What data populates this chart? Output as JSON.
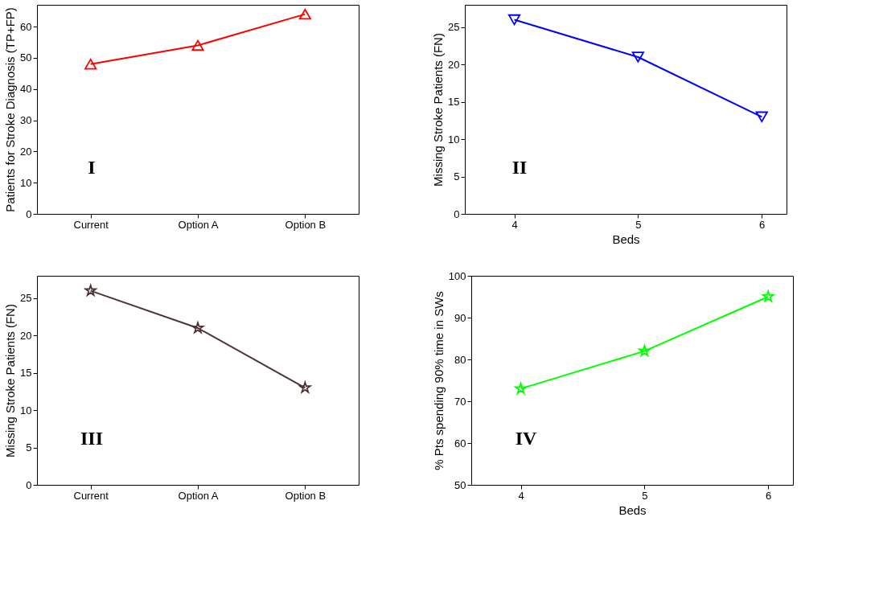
{
  "chart_data": [
    {
      "type": "line",
      "categories": [
        "Current",
        "Option A",
        "Option B"
      ],
      "ylabel": "Patients for Stroke Diagnosis (TP+FP)",
      "ylim": [
        0,
        67
      ],
      "yticks": [
        0,
        10,
        20,
        30,
        40,
        50,
        60
      ],
      "marker": "triangle",
      "annotations": [
        "I"
      ],
      "grid": false,
      "series": [
        {
          "color": "#ff0000",
          "values": [
            48,
            54,
            64
          ]
        }
      ]
    },
    {
      "type": "line",
      "x": [
        4,
        5,
        6
      ],
      "xlabel": "Beds",
      "ylabel": "Missing Stroke Patients (FN)",
      "xlim": [
        3.6,
        6.2
      ],
      "xticks": [
        4,
        5,
        6
      ],
      "ylim": [
        0,
        28
      ],
      "yticks": [
        0,
        5,
        10,
        15,
        20,
        25
      ],
      "marker": "triangle-down",
      "annotations": [
        "II"
      ],
      "grid": false,
      "series": [
        {
          "color": "#0000ff",
          "values": [
            26,
            21,
            13
          ]
        }
      ]
    },
    {
      "type": "line",
      "categories": [
        "Current",
        "Option A",
        "Option B"
      ],
      "ylabel": "Missing Stroke Patients (FN)",
      "ylim": [
        0,
        28
      ],
      "yticks": [
        0,
        5,
        10,
        15,
        20,
        25
      ],
      "marker": "star",
      "annotations": [
        "III"
      ],
      "grid": false,
      "series": [
        {
          "color": "#4d3333",
          "values": [
            26,
            21,
            13
          ]
        }
      ]
    },
    {
      "type": "line",
      "x": [
        4,
        5,
        6
      ],
      "xlabel": "Beds",
      "ylabel": "% Pts spending 90% time in SWs",
      "xlim": [
        3.6,
        6.2
      ],
      "xticks": [
        4,
        5,
        6
      ],
      "ylim": [
        50,
        100
      ],
      "yticks": [
        50,
        60,
        70,
        80,
        90,
        100
      ],
      "marker": "star",
      "annotations": [
        "IV"
      ],
      "grid": false,
      "series": [
        {
          "color": "#00ff00",
          "values": [
            73,
            82,
            95
          ]
        }
      ]
    }
  ]
}
